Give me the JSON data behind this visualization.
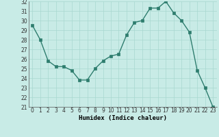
{
  "x": [
    0,
    1,
    2,
    3,
    4,
    5,
    6,
    7,
    8,
    9,
    10,
    11,
    12,
    13,
    14,
    15,
    16,
    17,
    18,
    19,
    20,
    21,
    22,
    23
  ],
  "y": [
    29.5,
    28.0,
    25.8,
    25.2,
    25.2,
    24.8,
    23.8,
    23.8,
    25.0,
    25.8,
    26.3,
    26.5,
    28.5,
    29.8,
    30.0,
    31.3,
    31.3,
    32.0,
    30.8,
    30.0,
    28.8,
    24.8,
    23.0,
    21.0
  ],
  "line_color": "#2e7d6e",
  "marker_color": "#2e7d6e",
  "bg_color": "#c8ebe6",
  "grid_color": "#a8d8d0",
  "xlabel": "Humidex (Indice chaleur)",
  "ylim": [
    21,
    32
  ],
  "xlim_min": -0.5,
  "xlim_max": 23.5,
  "yticks": [
    21,
    22,
    23,
    24,
    25,
    26,
    27,
    28,
    29,
    30,
    31,
    32
  ],
  "xticks": [
    0,
    1,
    2,
    3,
    4,
    5,
    6,
    7,
    8,
    9,
    10,
    11,
    12,
    13,
    14,
    15,
    16,
    17,
    18,
    19,
    20,
    21,
    22,
    23
  ],
  "tick_fontsize": 5.5,
  "label_fontsize": 6.5,
  "line_width": 1.0,
  "marker_size": 2.5
}
